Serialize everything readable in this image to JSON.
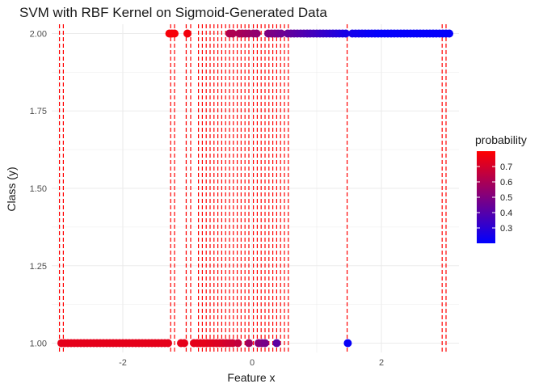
{
  "chart_data": {
    "type": "scatter",
    "title": "SVM with RBF Kernel on Sigmoid-Generated Data",
    "xlabel": "Feature x",
    "ylabel": "Class (y)",
    "xlim": [
      -3.1,
      3.2
    ],
    "ylim": [
      0.97,
      2.03
    ],
    "x_ticks": [
      -2,
      0,
      2
    ],
    "y_ticks": [
      1.0,
      1.25,
      1.5,
      1.75,
      2.0
    ],
    "y_tick_labels": [
      "1.00",
      "1.25",
      "1.50",
      "1.75",
      "2.00"
    ],
    "grid": true,
    "legend": {
      "title": "probability",
      "position": "right",
      "type": "gradient",
      "range": [
        0.2,
        0.8
      ],
      "ticks": [
        0.3,
        0.4,
        0.5,
        0.6,
        0.7
      ],
      "tick_labels": [
        "0.3",
        "0.4",
        "0.5",
        "0.6",
        "0.7"
      ],
      "low_color": "#0000ff",
      "high_color": "#ff0000"
    },
    "colors": {
      "vline": "#ff0000",
      "grid": "#ebebeb",
      "low": "#0000ff",
      "high": "#ff0000"
    },
    "support_vector_lines": [
      -2.98,
      -2.92,
      -1.26,
      -1.2,
      -1.02,
      -0.95,
      -0.83,
      -0.77,
      -0.71,
      -0.65,
      -0.59,
      -0.53,
      -0.47,
      -0.41,
      -0.35,
      -0.29,
      -0.23,
      -0.17,
      -0.11,
      -0.05,
      0.02,
      0.08,
      0.14,
      0.2,
      0.26,
      0.32,
      0.38,
      0.44,
      0.5,
      0.56,
      1.47,
      2.94,
      3.0
    ],
    "class1_points": {
      "y": 1.0,
      "points": [
        {
          "x": -2.95,
          "p": 0.74
        },
        {
          "x": -2.9,
          "p": 0.74
        },
        {
          "x": -2.85,
          "p": 0.74
        },
        {
          "x": -2.8,
          "p": 0.74
        },
        {
          "x": -2.75,
          "p": 0.74
        },
        {
          "x": -2.7,
          "p": 0.74
        },
        {
          "x": -2.65,
          "p": 0.74
        },
        {
          "x": -2.6,
          "p": 0.74
        },
        {
          "x": -2.55,
          "p": 0.74
        },
        {
          "x": -2.5,
          "p": 0.74
        },
        {
          "x": -2.45,
          "p": 0.74
        },
        {
          "x": -2.4,
          "p": 0.74
        },
        {
          "x": -2.35,
          "p": 0.74
        },
        {
          "x": -2.3,
          "p": 0.74
        },
        {
          "x": -2.25,
          "p": 0.74
        },
        {
          "x": -2.2,
          "p": 0.74
        },
        {
          "x": -2.15,
          "p": 0.74
        },
        {
          "x": -2.1,
          "p": 0.74
        },
        {
          "x": -2.05,
          "p": 0.74
        },
        {
          "x": -2.0,
          "p": 0.74
        },
        {
          "x": -1.95,
          "p": 0.74
        },
        {
          "x": -1.9,
          "p": 0.74
        },
        {
          "x": -1.85,
          "p": 0.74
        },
        {
          "x": -1.8,
          "p": 0.74
        },
        {
          "x": -1.75,
          "p": 0.74
        },
        {
          "x": -1.7,
          "p": 0.74
        },
        {
          "x": -1.65,
          "p": 0.74
        },
        {
          "x": -1.6,
          "p": 0.74
        },
        {
          "x": -1.55,
          "p": 0.74
        },
        {
          "x": -1.5,
          "p": 0.74
        },
        {
          "x": -1.45,
          "p": 0.74
        },
        {
          "x": -1.4,
          "p": 0.74
        },
        {
          "x": -1.35,
          "p": 0.74
        },
        {
          "x": -1.3,
          "p": 0.74
        },
        {
          "x": -1.1,
          "p": 0.74
        },
        {
          "x": -1.05,
          "p": 0.74
        },
        {
          "x": -0.9,
          "p": 0.74
        },
        {
          "x": -0.85,
          "p": 0.74
        },
        {
          "x": -0.8,
          "p": 0.74
        },
        {
          "x": -0.75,
          "p": 0.74
        },
        {
          "x": -0.7,
          "p": 0.74
        },
        {
          "x": -0.65,
          "p": 0.73
        },
        {
          "x": -0.6,
          "p": 0.73
        },
        {
          "x": -0.55,
          "p": 0.72
        },
        {
          "x": -0.5,
          "p": 0.72
        },
        {
          "x": -0.45,
          "p": 0.71
        },
        {
          "x": -0.4,
          "p": 0.7
        },
        {
          "x": -0.35,
          "p": 0.69
        },
        {
          "x": -0.3,
          "p": 0.68
        },
        {
          "x": -0.22,
          "p": 0.66
        },
        {
          "x": -0.05,
          "p": 0.58
        },
        {
          "x": 0.1,
          "p": 0.52
        },
        {
          "x": 0.15,
          "p": 0.5
        },
        {
          "x": 0.2,
          "p": 0.48
        },
        {
          "x": 0.38,
          "p": 0.42
        },
        {
          "x": 1.48,
          "p": 0.22
        }
      ]
    },
    "class2_points": {
      "y": 2.0,
      "points": [
        {
          "x": -1.28,
          "p": 0.78
        },
        {
          "x": -1.24,
          "p": 0.78
        },
        {
          "x": -1.2,
          "p": 0.78
        },
        {
          "x": -1.0,
          "p": 0.77
        },
        {
          "x": -0.35,
          "p": 0.62
        },
        {
          "x": -0.3,
          "p": 0.61
        },
        {
          "x": -0.2,
          "p": 0.6
        },
        {
          "x": -0.15,
          "p": 0.59
        },
        {
          "x": -0.1,
          "p": 0.58
        },
        {
          "x": -0.05,
          "p": 0.57
        },
        {
          "x": 0.02,
          "p": 0.55
        },
        {
          "x": 0.07,
          "p": 0.54
        },
        {
          "x": 0.25,
          "p": 0.5
        },
        {
          "x": 0.3,
          "p": 0.49
        },
        {
          "x": 0.35,
          "p": 0.48
        },
        {
          "x": 0.4,
          "p": 0.47
        },
        {
          "x": 0.45,
          "p": 0.46
        },
        {
          "x": 0.55,
          "p": 0.44
        },
        {
          "x": 0.6,
          "p": 0.43
        },
        {
          "x": 0.65,
          "p": 0.42
        },
        {
          "x": 0.7,
          "p": 0.41
        },
        {
          "x": 0.75,
          "p": 0.4
        },
        {
          "x": 0.8,
          "p": 0.39
        },
        {
          "x": 0.85,
          "p": 0.38
        },
        {
          "x": 0.9,
          "p": 0.37
        },
        {
          "x": 0.95,
          "p": 0.36
        },
        {
          "x": 1.0,
          "p": 0.35
        },
        {
          "x": 1.05,
          "p": 0.34
        },
        {
          "x": 1.1,
          "p": 0.33
        },
        {
          "x": 1.15,
          "p": 0.32
        },
        {
          "x": 1.2,
          "p": 0.31
        },
        {
          "x": 1.25,
          "p": 0.3
        },
        {
          "x": 1.3,
          "p": 0.29
        },
        {
          "x": 1.35,
          "p": 0.28
        },
        {
          "x": 1.4,
          "p": 0.27
        },
        {
          "x": 1.45,
          "p": 0.26
        },
        {
          "x": 1.55,
          "p": 0.25
        },
        {
          "x": 1.6,
          "p": 0.24
        },
        {
          "x": 1.65,
          "p": 0.24
        },
        {
          "x": 1.7,
          "p": 0.23
        },
        {
          "x": 1.75,
          "p": 0.23
        },
        {
          "x": 1.8,
          "p": 0.22
        },
        {
          "x": 1.85,
          "p": 0.22
        },
        {
          "x": 1.9,
          "p": 0.22
        },
        {
          "x": 1.95,
          "p": 0.21
        },
        {
          "x": 2.0,
          "p": 0.21
        },
        {
          "x": 2.05,
          "p": 0.21
        },
        {
          "x": 2.1,
          "p": 0.21
        },
        {
          "x": 2.15,
          "p": 0.21
        },
        {
          "x": 2.2,
          "p": 0.21
        },
        {
          "x": 2.25,
          "p": 0.21
        },
        {
          "x": 2.3,
          "p": 0.21
        },
        {
          "x": 2.35,
          "p": 0.21
        },
        {
          "x": 2.4,
          "p": 0.21
        },
        {
          "x": 2.45,
          "p": 0.21
        },
        {
          "x": 2.5,
          "p": 0.21
        },
        {
          "x": 2.55,
          "p": 0.21
        },
        {
          "x": 2.6,
          "p": 0.21
        },
        {
          "x": 2.65,
          "p": 0.21
        },
        {
          "x": 2.7,
          "p": 0.21
        },
        {
          "x": 2.75,
          "p": 0.21
        },
        {
          "x": 2.8,
          "p": 0.21
        },
        {
          "x": 2.85,
          "p": 0.21
        },
        {
          "x": 2.9,
          "p": 0.21
        },
        {
          "x": 2.95,
          "p": 0.21
        },
        {
          "x": 3.0,
          "p": 0.21
        },
        {
          "x": 3.05,
          "p": 0.21
        }
      ]
    }
  }
}
